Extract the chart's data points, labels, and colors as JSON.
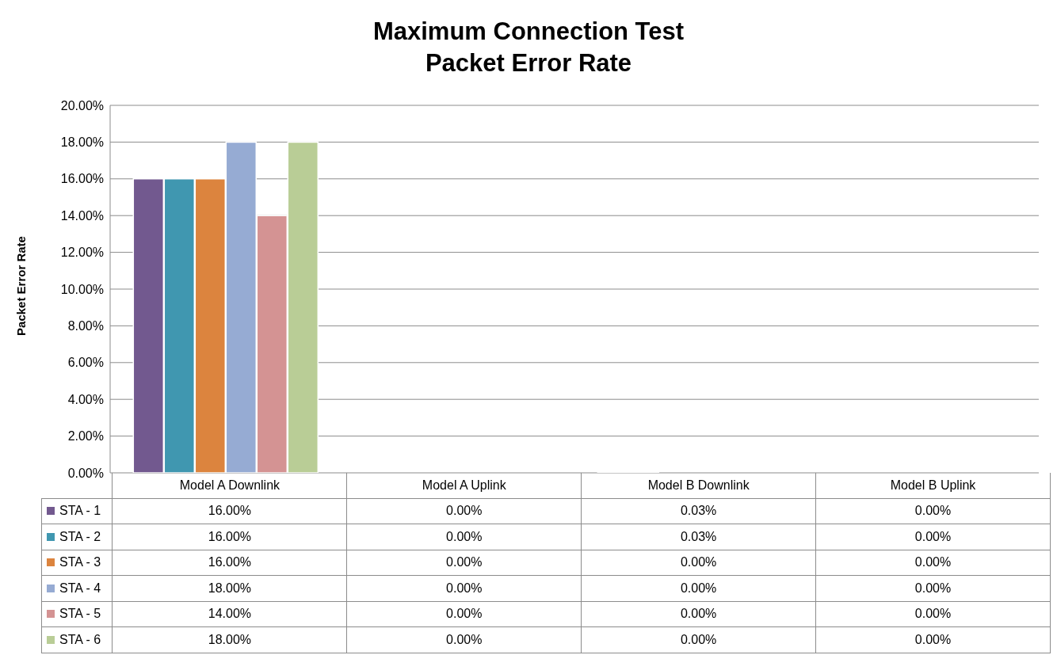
{
  "chart_data": {
    "type": "bar",
    "title": "Maximum Connection Test\nPacket Error Rate",
    "ylabel": "Packet Error Rate",
    "categories": [
      "Model A Downlink",
      "Model A Uplink",
      "Model B Downlink",
      "Model B Uplink"
    ],
    "series": [
      {
        "name": "STA - 1",
        "color": "#72598f",
        "values": [
          16,
          0,
          0.03,
          0
        ],
        "value_labels": [
          "16.00%",
          "0.00%",
          "0.03%",
          "0.00%"
        ]
      },
      {
        "name": "STA - 2",
        "color": "#4097b0",
        "values": [
          16,
          0,
          0.03,
          0
        ],
        "value_labels": [
          "16.00%",
          "0.00%",
          "0.03%",
          "0.00%"
        ]
      },
      {
        "name": "STA - 3",
        "color": "#dc843e",
        "values": [
          16,
          0,
          0,
          0
        ],
        "value_labels": [
          "16.00%",
          "0.00%",
          "0.00%",
          "0.00%"
        ]
      },
      {
        "name": "STA - 4",
        "color": "#96abd3",
        "values": [
          18,
          0,
          0,
          0
        ],
        "value_labels": [
          "18.00%",
          "0.00%",
          "0.00%",
          "0.00%"
        ]
      },
      {
        "name": "STA - 5",
        "color": "#d49393",
        "values": [
          14,
          0,
          0,
          0
        ],
        "value_labels": [
          "14.00%",
          "0.00%",
          "0.00%",
          "0.00%"
        ]
      },
      {
        "name": "STA - 6",
        "color": "#b9cd96",
        "values": [
          18,
          0,
          0,
          0
        ],
        "value_labels": [
          "18.00%",
          "0.00%",
          "0.00%",
          "0.00%"
        ]
      }
    ],
    "ylim": [
      0,
      20
    ],
    "yticks": [
      {
        "value": 0,
        "label": "0.00%"
      },
      {
        "value": 2,
        "label": "2.00%"
      },
      {
        "value": 4,
        "label": "4.00%"
      },
      {
        "value": 6,
        "label": "6.00%"
      },
      {
        "value": 8,
        "label": "8.00%"
      },
      {
        "value": 10,
        "label": "10.00%"
      },
      {
        "value": 12,
        "label": "12.00%"
      },
      {
        "value": 14,
        "label": "14.00%"
      },
      {
        "value": 16,
        "label": "16.00%"
      },
      {
        "value": 18,
        "label": "18.00%"
      },
      {
        "value": 20,
        "label": "20.00%"
      }
    ],
    "grid": "y",
    "legend": "bottom left"
  }
}
